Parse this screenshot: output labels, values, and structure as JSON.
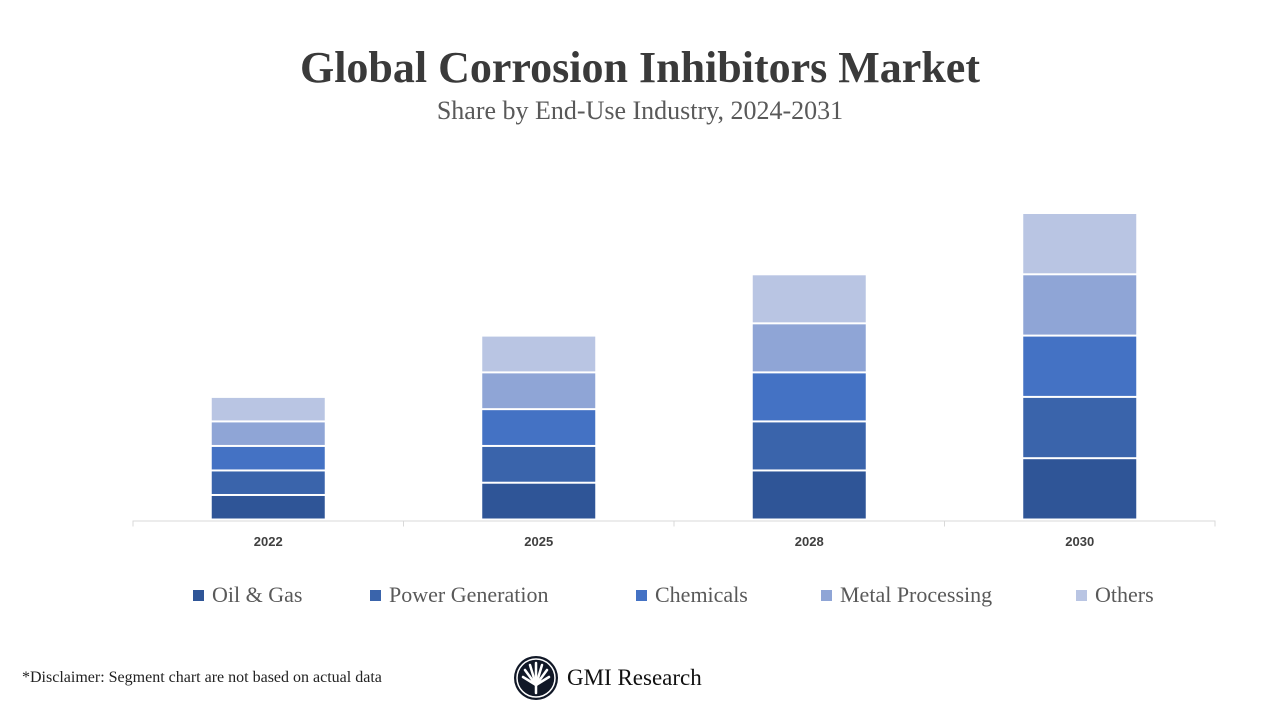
{
  "chart_data": {
    "type": "bar",
    "stacked": true,
    "title": "Global Corrosion Inhibitors Market",
    "subtitle": "Share by End-Use Industry, 2024-2031",
    "categories": [
      "2022",
      "2025",
      "2028",
      "2030"
    ],
    "series": [
      {
        "name": "Oil & Gas",
        "color": "#2F5597",
        "values": [
          2,
          3,
          4,
          5
        ]
      },
      {
        "name": "Power Generation",
        "color": "#3A64AB",
        "values": [
          2,
          3,
          4,
          5
        ]
      },
      {
        "name": "Chemicals",
        "color": "#4472C4",
        "values": [
          2,
          3,
          4,
          5
        ]
      },
      {
        "name": "Metal Processing",
        "color": "#8FA5D6",
        "values": [
          2,
          3,
          4,
          5
        ]
      },
      {
        "name": "Others",
        "color": "#B9C5E3",
        "values": [
          2,
          3,
          4,
          5
        ]
      }
    ],
    "ylim": [
      0,
      25
    ],
    "grid": false,
    "legend": "bottom"
  },
  "footer": {
    "disclaimer": "*Disclaimer:   Segment chart are not based on actual data",
    "logo_text": "GMI Research"
  }
}
